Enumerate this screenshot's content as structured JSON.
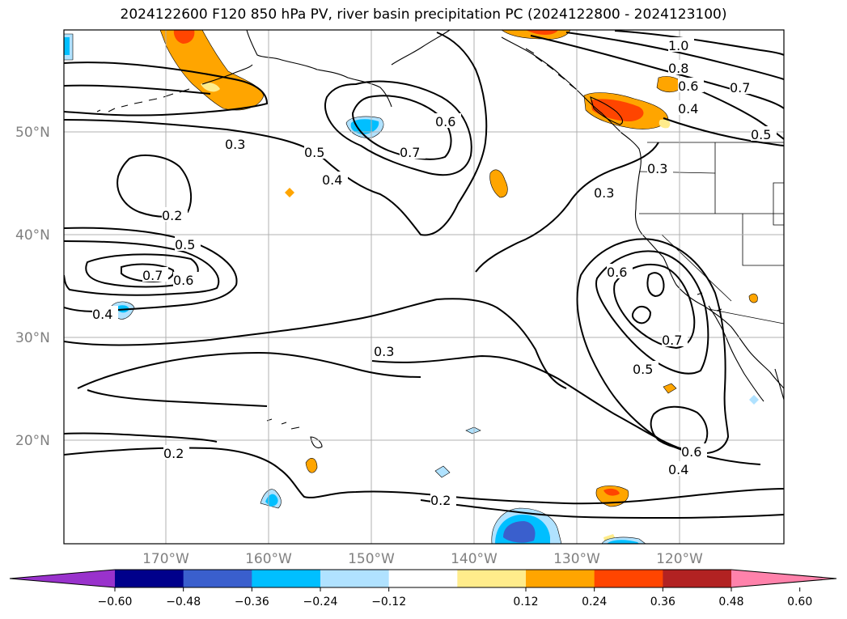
{
  "title": "2024122600 F120 850 hPa PV, river basin precipitation PC (2024122800 - 2024123100)",
  "latitude_labels": [
    "50°N",
    "40°N",
    "30°N",
    "20°N"
  ],
  "longitude_labels": [
    "170°W",
    "160°W",
    "150°W",
    "140°W",
    "130°W",
    "120°W"
  ],
  "contour_labels": [
    "0.3",
    "0.5",
    "0.4",
    "0.6",
    "0.7",
    "1.0",
    "0.8",
    "0.6",
    "0.7",
    "0.4",
    "0.5",
    "0.3",
    "0.3",
    "0.2",
    "0.5",
    "0.7",
    "0.6",
    "0.4",
    "0.6",
    "0.7",
    "0.5",
    "0.3",
    "0.6",
    "0.4",
    "0.2",
    "0.2"
  ],
  "colorbar": {
    "ticks": [
      "−0.60",
      "−0.48",
      "−0.36",
      "−0.24",
      "−0.12",
      "0.12",
      "0.24",
      "0.36",
      "0.48",
      "0.60"
    ],
    "colors": [
      "#9932cc",
      "#00008b",
      "#3a5fcd",
      "#00bfff",
      "#b0e2ff",
      "#ffffff",
      "#ffec8b",
      "#ffa500",
      "#ff4500",
      "#b22222",
      "#ff82ab"
    ]
  }
}
